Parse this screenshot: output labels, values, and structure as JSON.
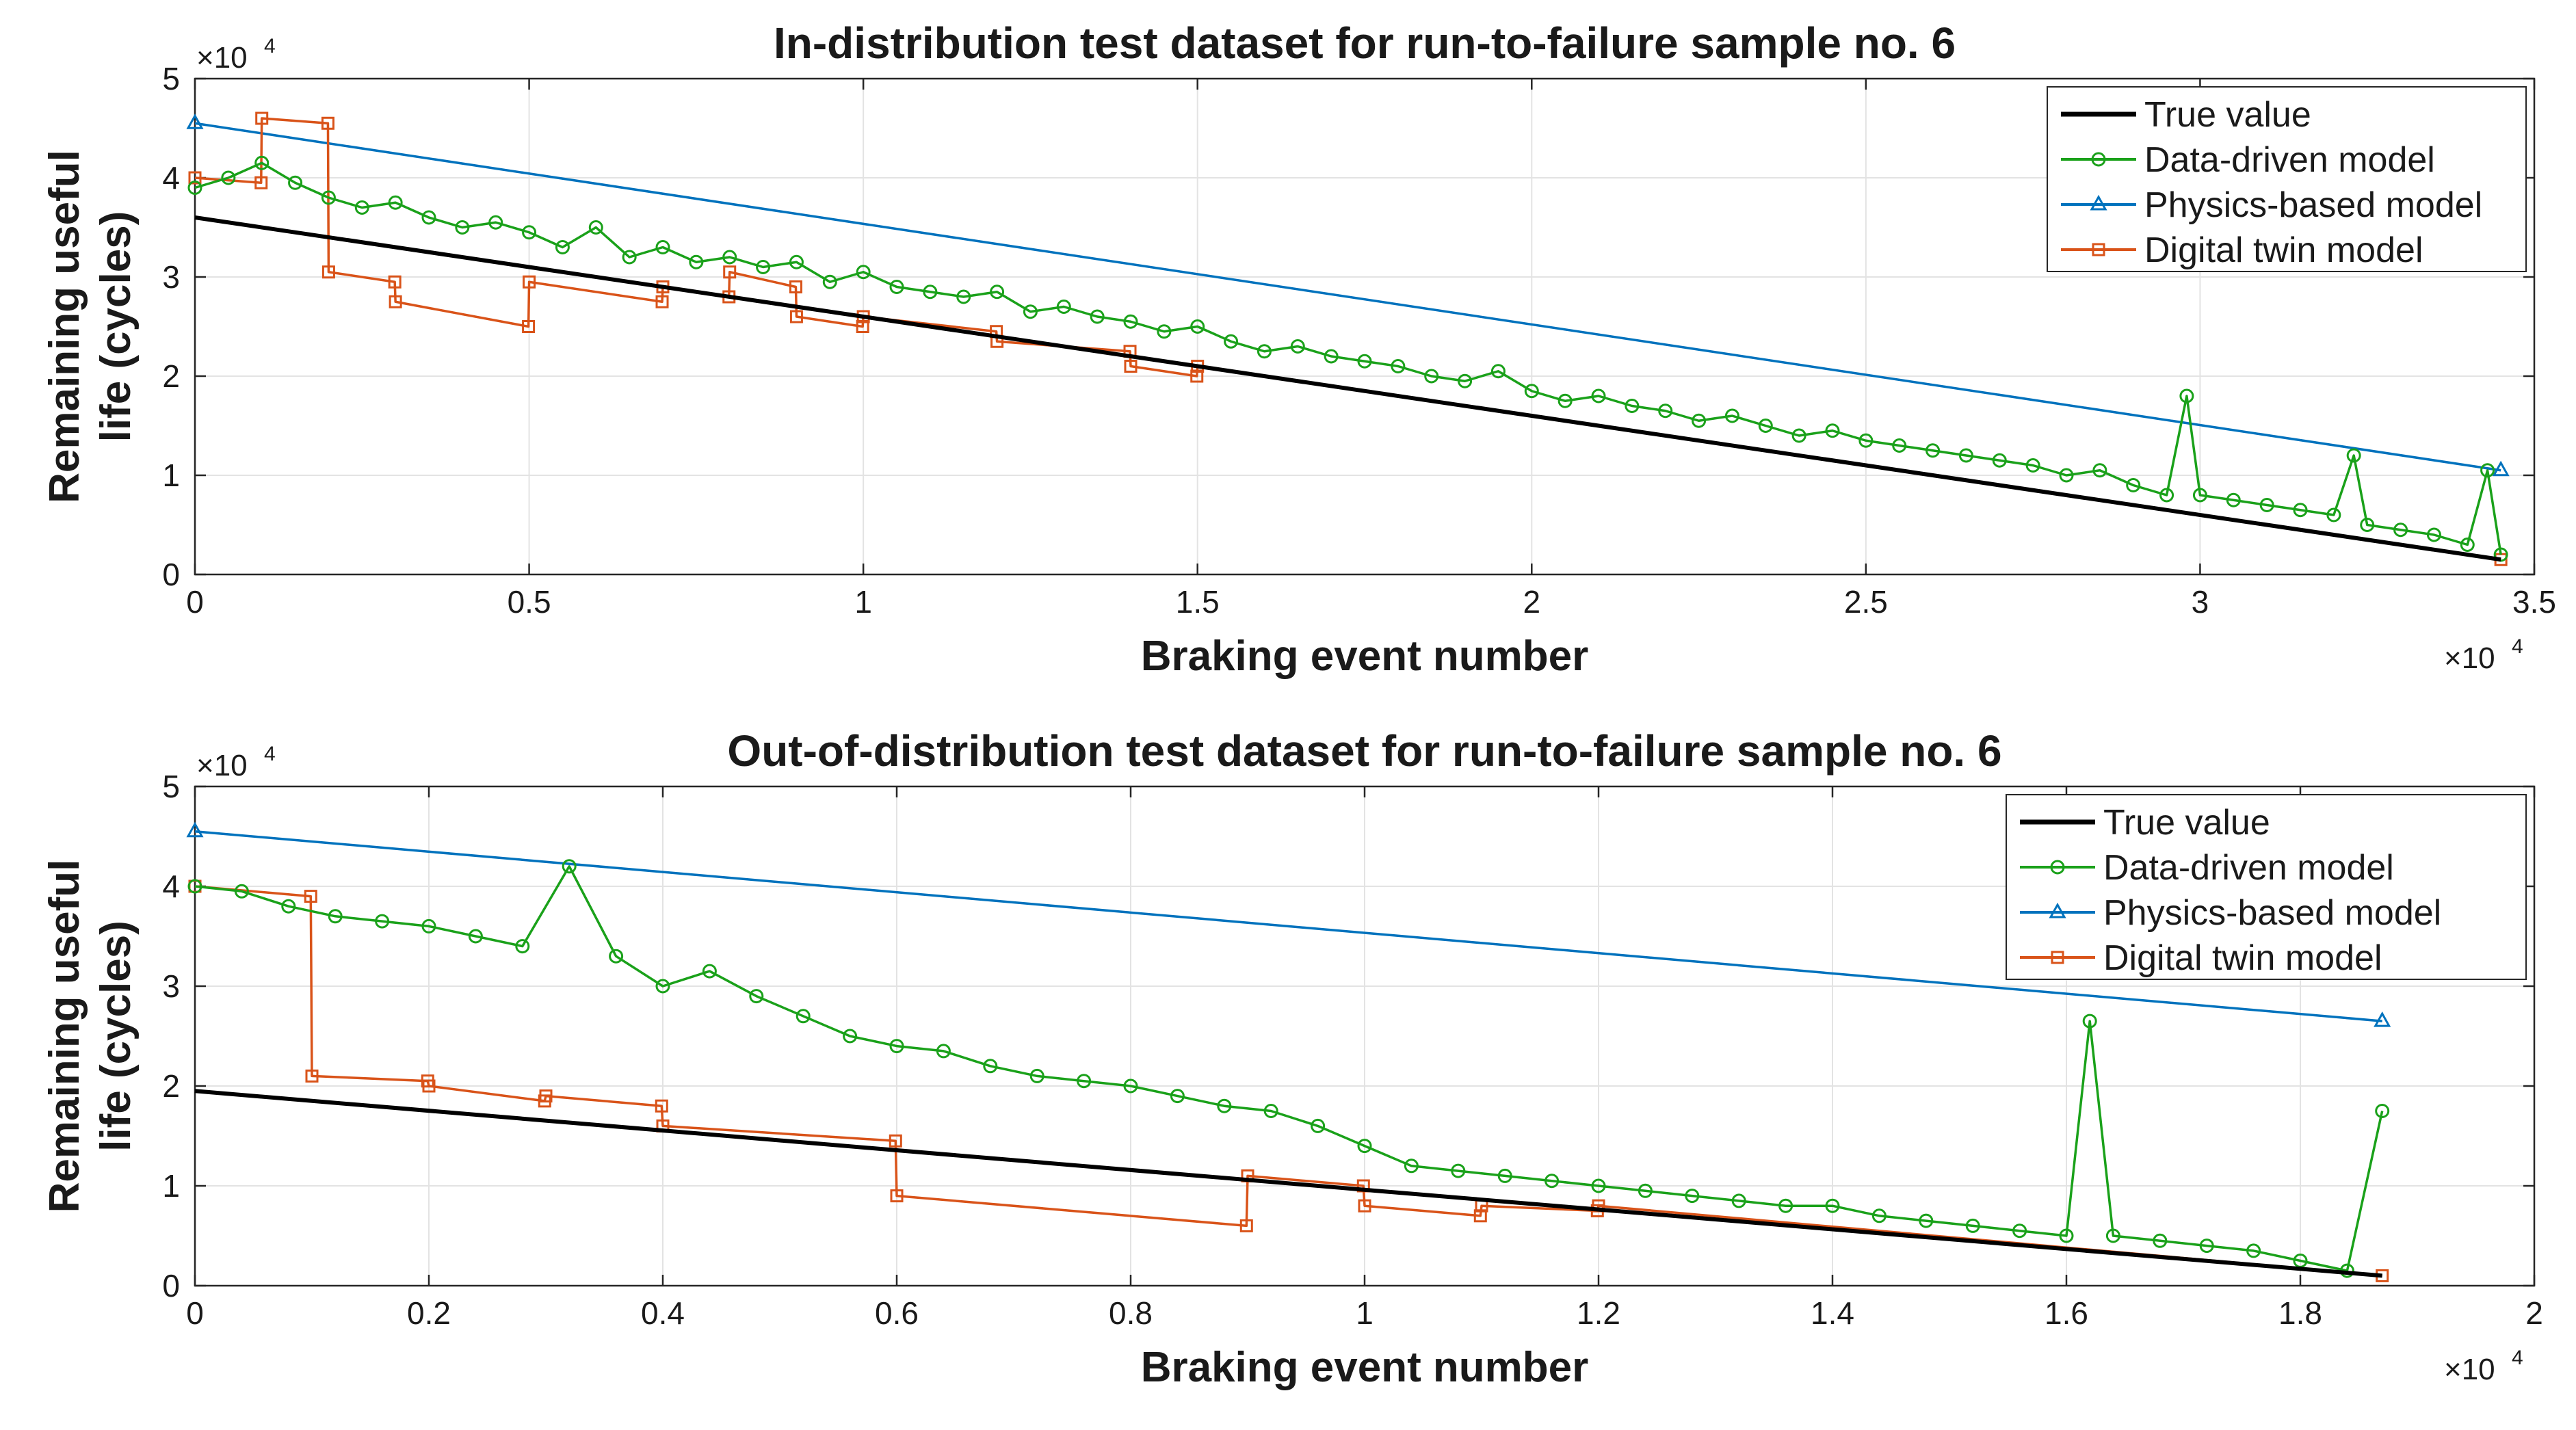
{
  "chart_data": [
    {
      "type": "line",
      "title": "In-distribution test dataset for run-to-failure sample no. 6",
      "xlabel": "Braking event number",
      "ylabel_line1": "Remaining useful",
      "ylabel_line2": "life (cycles)",
      "x_exponent_label": "×10",
      "x_exponent_power": "4",
      "y_exponent_label": "×10",
      "y_exponent_power": "4",
      "xlim": [
        0,
        35000
      ],
      "ylim": [
        0,
        50000
      ],
      "x_ticks": [
        0,
        5000,
        10000,
        15000,
        20000,
        25000,
        30000,
        35000
      ],
      "x_tick_labels": [
        "0",
        "0.5",
        "1",
        "1.5",
        "2",
        "2.5",
        "3",
        "3.5"
      ],
      "y_ticks": [
        0,
        10000,
        20000,
        30000,
        40000,
        50000
      ],
      "y_tick_labels": [
        "0",
        "1",
        "2",
        "3",
        "4",
        "5"
      ],
      "grid": true,
      "legend_position": "top-right",
      "series": [
        {
          "name": "True value",
          "color": "#000000",
          "marker": "none",
          "x": [
            0,
            34500
          ],
          "y": [
            36000,
            1500
          ]
        },
        {
          "name": "Data-driven model",
          "color": "#1aa11a",
          "marker": "circle",
          "x": [
            0,
            500,
            1000,
            1500,
            2000,
            2500,
            3000,
            3500,
            4000,
            4500,
            5000,
            5500,
            6000,
            6500,
            7000,
            7500,
            8000,
            8500,
            9000,
            9500,
            10000,
            10500,
            11000,
            11500,
            12000,
            12500,
            13000,
            13500,
            14000,
            14500,
            15000,
            15500,
            16000,
            16500,
            17000,
            17500,
            18000,
            18500,
            19000,
            19500,
            20000,
            20500,
            21000,
            21500,
            22000,
            22500,
            23000,
            23500,
            24000,
            24500,
            25000,
            25500,
            26000,
            26500,
            27000,
            27500,
            28000,
            28500,
            29000,
            29500,
            29800,
            30000,
            30500,
            31000,
            31500,
            32000,
            32300,
            32500,
            33000,
            33500,
            34000,
            34300,
            34500
          ],
          "y": [
            39000,
            40000,
            41500,
            39500,
            38000,
            37000,
            37500,
            36000,
            35000,
            35500,
            34500,
            33000,
            35000,
            32000,
            33000,
            31500,
            32000,
            31000,
            31500,
            29500,
            30500,
            29000,
            28500,
            28000,
            28500,
            26500,
            27000,
            26000,
            25500,
            24500,
            25000,
            23500,
            22500,
            23000,
            22000,
            21500,
            21000,
            20000,
            19500,
            20500,
            18500,
            17500,
            18000,
            17000,
            16500,
            15500,
            16000,
            15000,
            14000,
            14500,
            13500,
            13000,
            12500,
            12000,
            11500,
            11000,
            10000,
            10500,
            9000,
            8000,
            18000,
            8000,
            7500,
            7000,
            6500,
            6000,
            12000,
            5000,
            4500,
            4000,
            3000,
            10500,
            2000
          ]
        },
        {
          "name": "Physics-based model",
          "color": "#0072bd",
          "marker": "triangle",
          "x": [
            0,
            34500
          ],
          "y": [
            45500,
            10500
          ]
        },
        {
          "name": "Digital twin model",
          "color": "#d95319",
          "marker": "square",
          "x": [
            0,
            990,
            1000,
            1990,
            2000,
            2990,
            3000,
            4990,
            5000,
            6990,
            7000,
            7990,
            8000,
            8990,
            9000,
            9990,
            10000,
            11990,
            12000,
            13990,
            14000,
            14990,
            15000,
            34500
          ],
          "y": [
            40000,
            39500,
            46000,
            45500,
            30500,
            29500,
            27500,
            25000,
            29500,
            27500,
            29000,
            28000,
            30500,
            29000,
            26000,
            25000,
            26000,
            24500,
            23500,
            22500,
            21000,
            20000,
            21000,
            1500
          ]
        }
      ]
    },
    {
      "type": "line",
      "title": "Out-of-distribution test dataset for run-to-failure sample no. 6",
      "xlabel": "Braking event number",
      "ylabel_line1": "Remaining useful",
      "ylabel_line2": "life (cycles)",
      "x_exponent_label": "×10",
      "x_exponent_power": "4",
      "y_exponent_label": "×10",
      "y_exponent_power": "4",
      "xlim": [
        0,
        20000
      ],
      "ylim": [
        0,
        50000
      ],
      "x_ticks": [
        0,
        2000,
        4000,
        6000,
        8000,
        10000,
        12000,
        14000,
        16000,
        18000,
        20000
      ],
      "x_tick_labels": [
        "0",
        "0.2",
        "0.4",
        "0.6",
        "0.8",
        "1",
        "1.2",
        "1.4",
        "1.6",
        "1.8",
        "2"
      ],
      "y_ticks": [
        0,
        10000,
        20000,
        30000,
        40000,
        50000
      ],
      "y_tick_labels": [
        "0",
        "1",
        "2",
        "3",
        "4",
        "5"
      ],
      "grid": true,
      "legend_position": "top-right",
      "series": [
        {
          "name": "True value",
          "color": "#000000",
          "marker": "none",
          "x": [
            0,
            18700
          ],
          "y": [
            19500,
            1000
          ]
        },
        {
          "name": "Data-driven model",
          "color": "#1aa11a",
          "marker": "circle",
          "x": [
            0,
            400,
            800,
            1200,
            1600,
            2000,
            2400,
            2800,
            3200,
            3600,
            4000,
            4400,
            4800,
            5200,
            5600,
            6000,
            6400,
            6800,
            7200,
            7600,
            8000,
            8400,
            8800,
            9200,
            9600,
            10000,
            10400,
            10800,
            11200,
            11600,
            12000,
            12400,
            12800,
            13200,
            13600,
            14000,
            14400,
            14800,
            15200,
            15600,
            16000,
            16200,
            16400,
            16800,
            17200,
            17600,
            18000,
            18400,
            18700
          ],
          "y": [
            40000,
            39500,
            38000,
            37000,
            36500,
            36000,
            35000,
            34000,
            42000,
            33000,
            30000,
            31500,
            29000,
            27000,
            25000,
            24000,
            23500,
            22000,
            21000,
            20500,
            20000,
            19000,
            18000,
            17500,
            16000,
            14000,
            12000,
            11500,
            11000,
            10500,
            10000,
            9500,
            9000,
            8500,
            8000,
            8000,
            7000,
            6500,
            6000,
            5500,
            5000,
            26500,
            5000,
            4500,
            4000,
            3500,
            2500,
            1500,
            17500
          ]
        },
        {
          "name": "Physics-based model",
          "color": "#0072bd",
          "marker": "triangle",
          "x": [
            0,
            18700
          ],
          "y": [
            45500,
            26500
          ]
        },
        {
          "name": "Digital twin model",
          "color": "#d95319",
          "marker": "square",
          "x": [
            0,
            990,
            1000,
            1990,
            2000,
            2990,
            3000,
            3990,
            4000,
            5990,
            6000,
            8990,
            9000,
            9990,
            10000,
            10990,
            11000,
            11990,
            12000,
            18700
          ],
          "y": [
            40000,
            39000,
            21000,
            20500,
            20000,
            18500,
            19000,
            18000,
            16000,
            14500,
            9000,
            6000,
            11000,
            10000,
            8000,
            7000,
            8000,
            7500,
            8000,
            1000
          ]
        }
      ]
    }
  ]
}
